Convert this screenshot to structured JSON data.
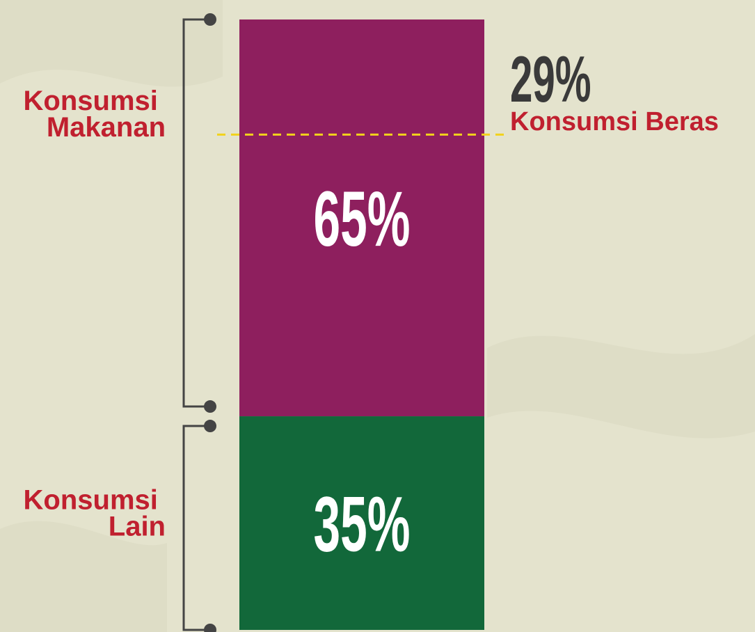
{
  "chart_data": {
    "type": "bar",
    "stacked": true,
    "categories": [
      null
    ],
    "ylim": [
      0,
      100
    ],
    "series": [
      {
        "name": "Konsumsi Makanan",
        "color": "#8e1f5e",
        "values": [
          65
        ],
        "value_labels": [
          "65%"
        ]
      },
      {
        "name": "Konsumsi Lain",
        "color": "#12683a",
        "values": [
          35
        ],
        "value_labels": [
          "35%"
        ]
      }
    ],
    "annotations": [
      {
        "value": 29,
        "label": "29%",
        "text": "Konsumsi Beras",
        "series": 0,
        "color": "#f2d21b"
      }
    ]
  }
}
